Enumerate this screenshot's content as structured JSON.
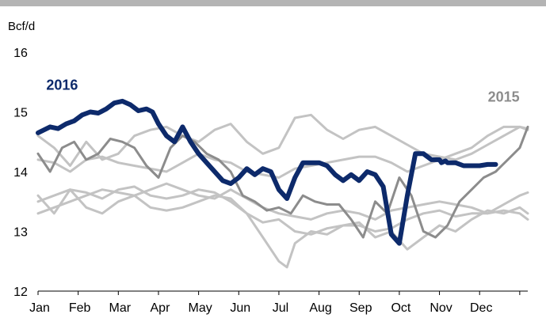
{
  "chart_data": {
    "type": "line",
    "ylabel": "Bcf/d",
    "ylim": [
      12,
      16
    ],
    "yticks": [
      12,
      13,
      14,
      15,
      16
    ],
    "xlim": [
      0,
      12.2
    ],
    "categories": [
      "Jan",
      "Feb",
      "Mar",
      "Apr",
      "May",
      "Jun",
      "Jul",
      "Aug",
      "Sep",
      "Oct",
      "Nov",
      "Dec"
    ],
    "grid": false,
    "colors": {
      "highlight": "#0d2a6b",
      "year2015": "#8c8c8c",
      "history": "#c3c3c3",
      "axis": "#000000",
      "band": "#b4b4b4"
    },
    "series": [
      {
        "name": "2016",
        "style": "highlight",
        "label_month": 0.6,
        "label_value": 15.45,
        "x": [
          0,
          0.15,
          0.3,
          0.5,
          0.7,
          0.9,
          1.1,
          1.3,
          1.5,
          1.7,
          1.9,
          2.1,
          2.3,
          2.5,
          2.7,
          2.85,
          3.0,
          3.2,
          3.4,
          3.6,
          3.8,
          4.0,
          4.2,
          4.4,
          4.6,
          4.8,
          5.0,
          5.2,
          5.4,
          5.6,
          5.8,
          6.0,
          6.2,
          6.4,
          6.6,
          6.8,
          7.0,
          7.2,
          7.4,
          7.6,
          7.8,
          8.0,
          8.2,
          8.4,
          8.6,
          8.8,
          9.0,
          9.2,
          9.4,
          9.6,
          9.8,
          10.0,
          10.05,
          10.15,
          10.2,
          10.3,
          10.4,
          10.6,
          10.8,
          11.0,
          11.2,
          11.4
        ],
        "values": [
          14.65,
          14.7,
          14.75,
          14.72,
          14.8,
          14.85,
          14.95,
          15.0,
          14.98,
          15.05,
          15.15,
          15.18,
          15.12,
          15.02,
          15.05,
          15.0,
          14.8,
          14.6,
          14.5,
          14.75,
          14.5,
          14.3,
          14.15,
          14.0,
          13.85,
          13.8,
          13.9,
          14.05,
          13.95,
          14.05,
          14.0,
          13.7,
          13.55,
          13.9,
          14.15,
          14.15,
          14.15,
          14.1,
          13.95,
          13.85,
          13.95,
          13.85,
          14.0,
          13.95,
          13.75,
          12.95,
          12.8,
          13.6,
          14.3,
          14.3,
          14.2,
          14.2,
          14.15,
          14.18,
          14.15,
          14.15,
          14.15,
          14.1,
          14.1,
          14.1,
          14.12,
          14.12
        ]
      },
      {
        "name": "2015",
        "style": "year2015",
        "label_month": 11.6,
        "label_value": 15.25,
        "x": [
          0,
          0.3,
          0.6,
          0.9,
          1.2,
          1.5,
          1.8,
          2.1,
          2.4,
          2.7,
          3.0,
          3.3,
          3.6,
          3.9,
          4.2,
          4.5,
          4.8,
          5.1,
          5.4,
          5.7,
          6.0,
          6.3,
          6.6,
          6.9,
          7.2,
          7.5,
          7.8,
          8.1,
          8.4,
          8.7,
          9.0,
          9.3,
          9.6,
          9.9,
          10.2,
          10.5,
          10.8,
          11.1,
          11.4,
          11.7,
          12.0,
          12.2
        ],
        "values": [
          14.3,
          14.0,
          14.4,
          14.5,
          14.2,
          14.3,
          14.55,
          14.5,
          14.4,
          14.1,
          13.9,
          14.4,
          14.6,
          14.5,
          14.3,
          14.2,
          14.0,
          13.6,
          13.5,
          13.35,
          13.4,
          13.3,
          13.6,
          13.5,
          13.45,
          13.45,
          13.2,
          12.9,
          13.5,
          13.3,
          13.9,
          13.6,
          13.0,
          12.9,
          13.1,
          13.5,
          13.7,
          13.9,
          14.0,
          14.2,
          14.4,
          14.75
        ]
      },
      {
        "name": "",
        "style": "history",
        "x": [
          0,
          0.4,
          0.8,
          1.2,
          1.6,
          2.0,
          2.4,
          2.8,
          3.2,
          3.6,
          4.0,
          4.4,
          4.8,
          5.2,
          5.6,
          6.0,
          6.4,
          6.8,
          7.2,
          7.6,
          8.0,
          8.4,
          8.8,
          9.2,
          9.6,
          10.0,
          10.4,
          10.8,
          11.2,
          11.6,
          12.0,
          12.2
        ],
        "values": [
          14.6,
          14.4,
          14.1,
          14.5,
          14.2,
          14.3,
          14.6,
          14.7,
          14.75,
          14.6,
          14.5,
          14.7,
          14.8,
          14.5,
          14.3,
          14.4,
          14.9,
          14.95,
          14.7,
          14.55,
          14.7,
          14.75,
          14.6,
          14.45,
          14.3,
          14.25,
          14.2,
          14.3,
          14.45,
          14.6,
          14.75,
          14.7
        ]
      },
      {
        "name": "",
        "style": "history",
        "x": [
          0,
          0.4,
          0.8,
          1.2,
          1.6,
          2.0,
          2.4,
          2.8,
          3.2,
          3.6,
          4.0,
          4.4,
          4.8,
          5.2,
          5.6,
          6.0,
          6.4,
          6.8,
          7.2,
          7.6,
          8.0,
          8.4,
          8.8,
          9.2,
          9.6,
          10.0,
          10.4,
          10.8,
          11.2,
          11.6,
          12.0,
          12.2
        ],
        "values": [
          14.2,
          14.15,
          14.0,
          14.2,
          14.25,
          14.15,
          14.1,
          14.05,
          14.0,
          14.15,
          14.3,
          14.2,
          14.15,
          14.0,
          13.95,
          13.9,
          14.05,
          14.1,
          14.15,
          14.2,
          14.25,
          14.25,
          14.15,
          14.0,
          14.1,
          14.2,
          14.3,
          14.4,
          14.6,
          14.75,
          14.75,
          14.72
        ]
      },
      {
        "name": "",
        "style": "history",
        "x": [
          0,
          0.4,
          0.8,
          1.2,
          1.6,
          2.0,
          2.4,
          2.8,
          3.2,
          3.6,
          4.0,
          4.4,
          4.8,
          5.2,
          5.6,
          6.0,
          6.4,
          6.8,
          7.2,
          7.6,
          8.0,
          8.4,
          8.8,
          9.2,
          9.6,
          10.0,
          10.4,
          10.8,
          11.2,
          11.6,
          12.0,
          12.2
        ],
        "values": [
          13.5,
          13.6,
          13.7,
          13.65,
          13.55,
          13.7,
          13.75,
          13.6,
          13.55,
          13.6,
          13.7,
          13.65,
          13.5,
          13.3,
          13.15,
          13.2,
          13.0,
          12.95,
          13.05,
          13.1,
          13.1,
          13.0,
          13.05,
          13.2,
          13.3,
          13.35,
          13.25,
          13.3,
          13.3,
          13.35,
          13.3,
          13.2
        ]
      },
      {
        "name": "",
        "style": "history",
        "x": [
          0,
          0.4,
          0.8,
          1.2,
          1.6,
          2.0,
          2.4,
          2.8,
          3.2,
          3.6,
          4.0,
          4.4,
          4.8,
          5.2,
          5.6,
          6.0,
          6.4,
          6.8,
          7.2,
          7.6,
          8.0,
          8.4,
          8.8,
          9.2,
          9.6,
          10.0,
          10.4,
          10.8,
          11.2,
          11.6,
          12.0,
          12.2
        ],
        "values": [
          13.3,
          13.4,
          13.5,
          13.6,
          13.7,
          13.65,
          13.6,
          13.7,
          13.8,
          13.7,
          13.6,
          13.55,
          13.7,
          13.55,
          13.4,
          13.3,
          13.25,
          13.2,
          13.3,
          13.35,
          13.3,
          13.2,
          13.35,
          13.4,
          13.45,
          13.5,
          13.45,
          13.4,
          13.3,
          13.45,
          13.6,
          13.65
        ]
      },
      {
        "name": "",
        "style": "history",
        "x": [
          0,
          0.4,
          0.8,
          1.2,
          1.6,
          2.0,
          2.4,
          2.8,
          3.2,
          3.6,
          4.0,
          4.4,
          4.8,
          5.2,
          5.6,
          6.0,
          6.2,
          6.4,
          6.8,
          7.2,
          7.6,
          8.0,
          8.4,
          8.8,
          9.2,
          9.6,
          10.0,
          10.4,
          10.8,
          11.2,
          11.6,
          12.0,
          12.2
        ],
        "values": [
          13.6,
          13.3,
          13.7,
          13.4,
          13.3,
          13.5,
          13.6,
          13.4,
          13.35,
          13.4,
          13.5,
          13.6,
          13.55,
          13.3,
          12.9,
          12.5,
          12.4,
          12.8,
          13.0,
          12.95,
          13.1,
          13.15,
          12.9,
          13.0,
          12.7,
          12.9,
          13.1,
          13.0,
          13.2,
          13.35,
          13.3,
          13.4,
          13.3
        ]
      }
    ]
  }
}
